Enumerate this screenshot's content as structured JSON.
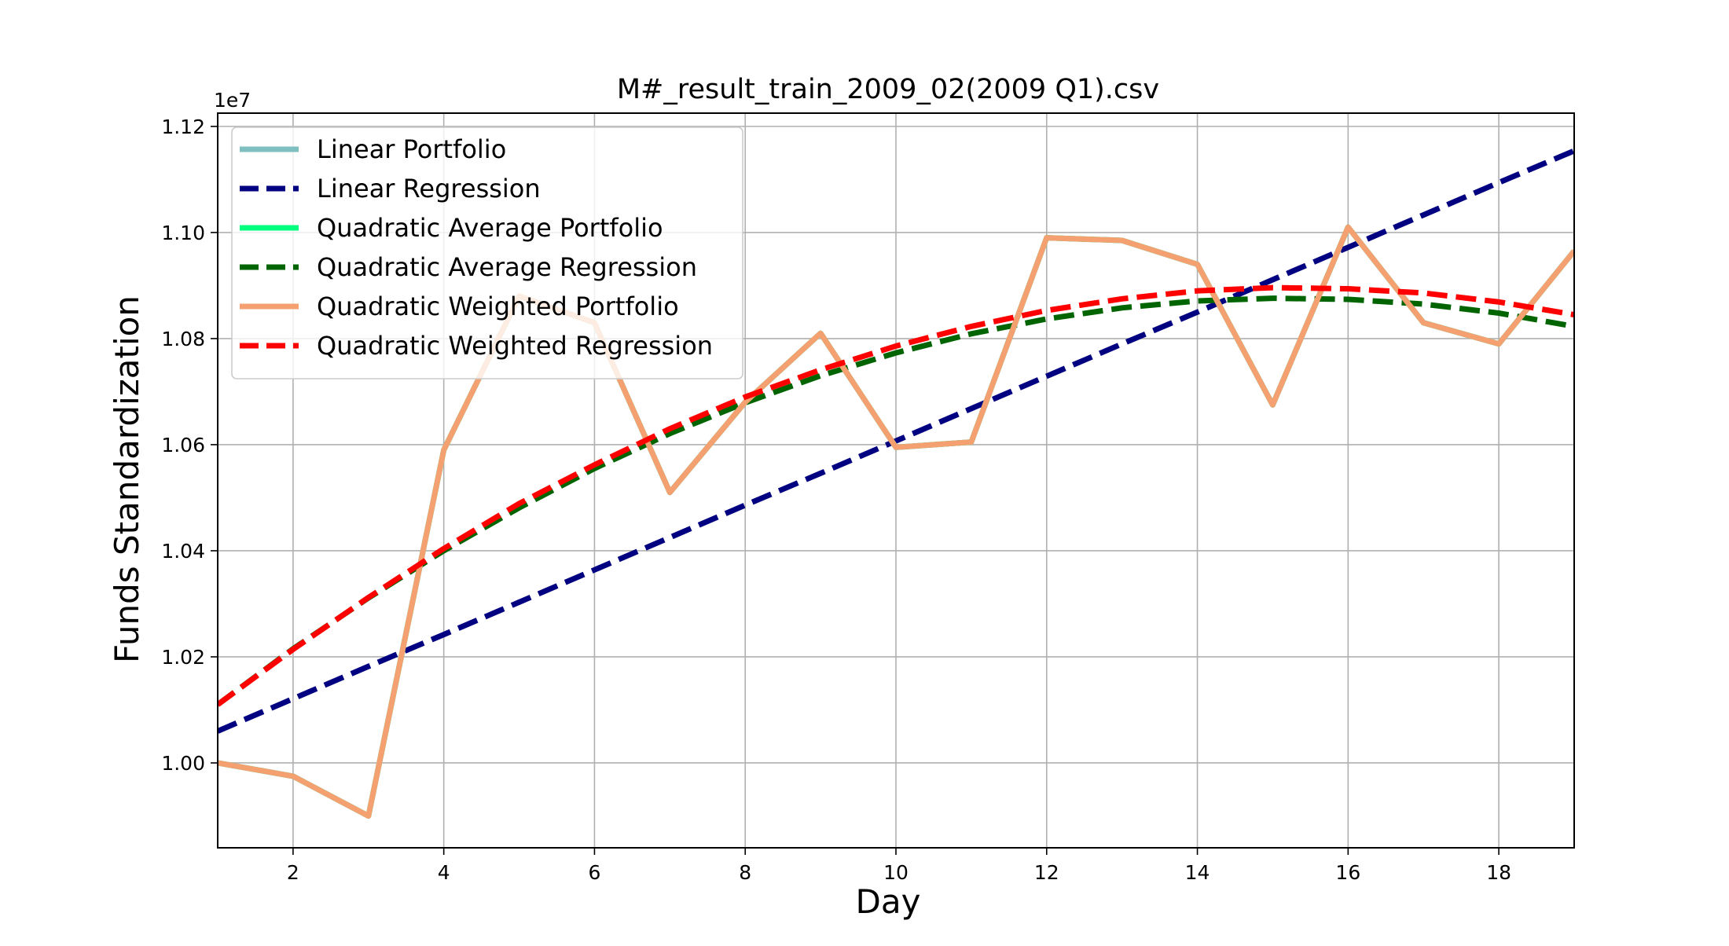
{
  "chart_data": {
    "type": "line",
    "title": "M#_result_train_2009_02(2009 Q1).csv",
    "xlabel": "Day",
    "ylabel": "Funds Standardization",
    "y_offset_label": "1e7",
    "xlim": [
      1,
      19
    ],
    "ylim": [
      0.984,
      1.1225
    ],
    "x_ticks": [
      2,
      4,
      6,
      8,
      10,
      12,
      14,
      16,
      18
    ],
    "x_tick_labels": [
      "2",
      "4",
      "6",
      "8",
      "10",
      "12",
      "14",
      "16",
      "18"
    ],
    "y_ticks": [
      1.0,
      1.02,
      1.04,
      1.06,
      1.08,
      1.1,
      1.12
    ],
    "y_tick_labels": [
      "1.00",
      "1.02",
      "1.04",
      "1.06",
      "1.08",
      "1.10",
      "1.12"
    ],
    "grid": true,
    "legend_position": "upper-left",
    "x": [
      1,
      2,
      3,
      4,
      5,
      6,
      7,
      8,
      9,
      10,
      11,
      12,
      13,
      14,
      15,
      16,
      17,
      18,
      19
    ],
    "series": [
      {
        "name": "Linear Portfolio",
        "style": "solid",
        "color": "#7fbfbf",
        "values": [
          1.0,
          0.9975,
          0.99,
          1.059,
          1.088,
          1.083,
          1.051,
          1.068,
          1.081,
          1.0595,
          1.0605,
          1.099,
          1.0985,
          1.094,
          1.0675,
          1.101,
          1.083,
          1.079,
          1.0965
        ]
      },
      {
        "name": "Linear Regression",
        "style": "dashed",
        "color": "#000080",
        "values": [
          1.006,
          1.0121,
          1.0182,
          1.0242,
          1.0303,
          1.0364,
          1.0425,
          1.0486,
          1.0546,
          1.0607,
          1.0668,
          1.0729,
          1.079,
          1.085,
          1.0911,
          1.0972,
          1.1033,
          1.1094,
          1.1154
        ]
      },
      {
        "name": "Quadratic Average Portfolio",
        "style": "solid",
        "color": "#00ff7f",
        "values": [
          1.0,
          0.9975,
          0.99,
          1.059,
          1.088,
          1.083,
          1.051,
          1.068,
          1.081,
          1.0595,
          1.0605,
          1.099,
          1.0985,
          1.094,
          1.0675,
          1.101,
          1.083,
          1.079,
          1.0965
        ]
      },
      {
        "name": "Quadratic Average Regression",
        "style": "dashed",
        "color": "#006400",
        "values": [
          1.011,
          1.0215,
          1.0311,
          1.04,
          1.0481,
          1.0555,
          1.0621,
          1.0679,
          1.073,
          1.0773,
          1.0809,
          1.0837,
          1.0858,
          1.0871,
          1.0876,
          1.0874,
          1.0865,
          1.0848,
          1.0823
        ]
      },
      {
        "name": "Quadratic Weighted Portfolio",
        "style": "solid",
        "color": "#f4a070",
        "values": [
          1.0,
          0.9975,
          0.99,
          1.059,
          1.088,
          1.083,
          1.051,
          1.068,
          1.081,
          1.0595,
          1.0605,
          1.099,
          1.0985,
          1.094,
          1.0675,
          1.101,
          1.083,
          1.079,
          1.0965
        ]
      },
      {
        "name": "Quadratic Weighted Regression",
        "style": "dashed",
        "color": "#ff0000",
        "values": [
          1.011,
          1.0214,
          1.0312,
          1.0404,
          1.0489,
          1.0562,
          1.063,
          1.069,
          1.0741,
          1.0786,
          1.0823,
          1.0853,
          1.0875,
          1.089,
          1.0896,
          1.0894,
          1.0886,
          1.0869,
          1.0845
        ]
      }
    ]
  }
}
